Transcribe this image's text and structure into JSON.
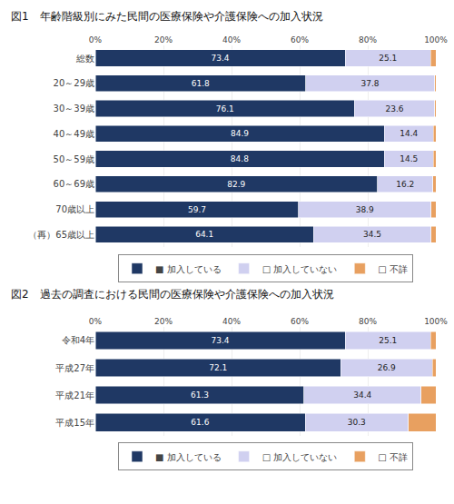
{
  "chart_data": [
    {
      "type": "bar",
      "orientation": "horizontal",
      "stacked": true,
      "title": "図1　年齢階級別にみた民間の医療保険や介護保険への加入状況",
      "categories": [
        "総数",
        "20～29歳",
        "30～39歳",
        "40～49歳",
        "50～59歳",
        "60～69歳",
        "70歳以上",
        "（再）65歳以上"
      ],
      "series": [
        {
          "name": "■ 加入している",
          "color": "#1f3864",
          "values": [
            73.4,
            61.8,
            76.1,
            84.9,
            84.8,
            82.9,
            59.7,
            64.1
          ],
          "data_labels": true
        },
        {
          "name": "□ 加入していない",
          "color": "#d0d0f0",
          "values": [
            25.1,
            37.8,
            23.6,
            14.4,
            14.5,
            16.2,
            38.9,
            34.5
          ],
          "data_labels": true
        },
        {
          "name": "□ 不詳",
          "color": "#e8a060",
          "values": [
            1.5,
            0.4,
            0.3,
            0.7,
            0.7,
            0.9,
            1.4,
            1.4
          ],
          "data_labels": false
        }
      ],
      "xlim": [
        0,
        100
      ],
      "xticks": [
        {
          "value": 0,
          "label": "0%"
        },
        {
          "value": 20,
          "label": "20%"
        },
        {
          "value": 40,
          "label": "40%"
        },
        {
          "value": 60,
          "label": "60%"
        },
        {
          "value": 80,
          "label": "80%"
        },
        {
          "value": 100,
          "label": "100%"
        }
      ],
      "grid": true,
      "legend": "bottom"
    },
    {
      "type": "bar",
      "orientation": "horizontal",
      "stacked": true,
      "title": "図2　過去の調査における民間の医療保険や介護保険への加入状況",
      "categories": [
        "令和4年",
        "平成27年",
        "平成21年",
        "平成15年"
      ],
      "series": [
        {
          "name": "■ 加入している",
          "color": "#1f3864",
          "values": [
            73.4,
            72.1,
            61.3,
            61.6
          ],
          "data_labels": true
        },
        {
          "name": "□ 加入していない",
          "color": "#d0d0f0",
          "values": [
            25.1,
            26.9,
            34.4,
            30.3
          ],
          "data_labels": true
        },
        {
          "name": "□ 不詳",
          "color": "#e8a060",
          "values": [
            1.5,
            1.0,
            4.3,
            8.1
          ],
          "data_labels": false
        }
      ],
      "xlim": [
        0,
        100
      ],
      "xticks": [
        {
          "value": 0,
          "label": "0%"
        },
        {
          "value": 20,
          "label": "20%"
        },
        {
          "value": 40,
          "label": "40%"
        },
        {
          "value": 60,
          "label": "60%"
        },
        {
          "value": 80,
          "label": "80%"
        },
        {
          "value": 100,
          "label": "100%"
        }
      ],
      "grid": true,
      "legend": "bottom"
    }
  ]
}
